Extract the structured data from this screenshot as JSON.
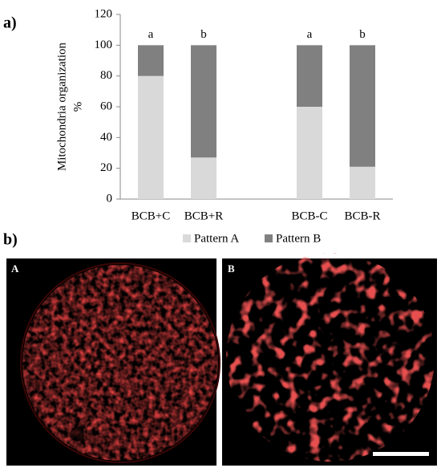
{
  "panel_labels": [
    "a)",
    "b)"
  ],
  "chart_data": {
    "type": "stacked-bar",
    "y_label": [
      "Mitochondria organization",
      "%"
    ],
    "categories": [
      "BCB+C",
      "BCB+R",
      null,
      "BCB-C",
      "BCB-R"
    ],
    "series": [
      {
        "name": "Pattern A",
        "color": "#d9d9d9",
        "values": [
          80,
          27,
          null,
          60,
          21
        ]
      },
      {
        "name": "Pattern B",
        "color": "#808080",
        "values": [
          20,
          73,
          null,
          40,
          79
        ]
      }
    ],
    "letters": [
      "a",
      "b",
      null,
      "a",
      "b"
    ],
    "ylim": [
      0,
      120
    ],
    "yticks": [
      0,
      20,
      40,
      60,
      80,
      100,
      120
    ],
    "grid": false,
    "legend": "bottom"
  },
  "images": [
    {
      "label": "A"
    },
    {
      "label": "B"
    }
  ]
}
